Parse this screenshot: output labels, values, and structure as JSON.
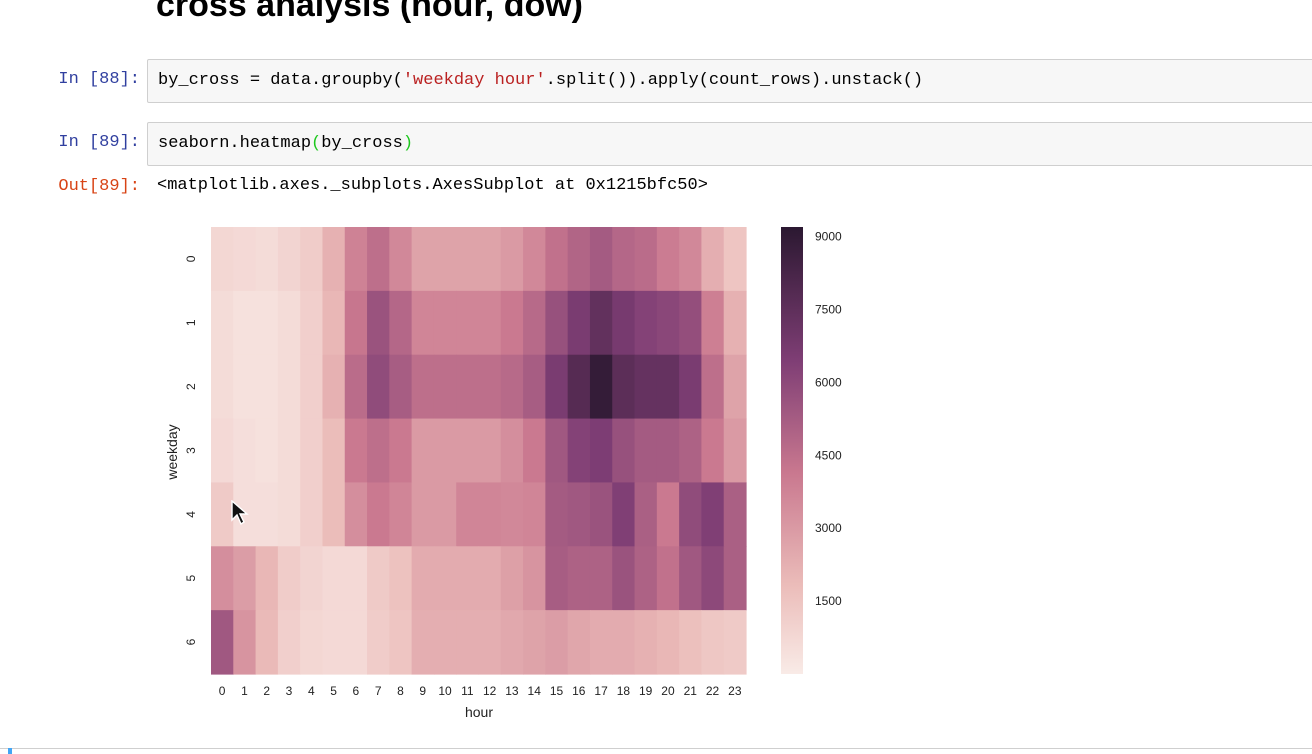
{
  "heading": "cross analysis (hour, dow)",
  "cells": {
    "c88": {
      "prompt": "In [88]:",
      "code_pre": "by_cross = data.groupby(",
      "code_str": "'weekday hour'",
      "code_post": ".split()).apply(count_rows).unstack()"
    },
    "c89": {
      "prompt": "In [89]:",
      "code_pre": "seaborn.heatmap",
      "code_open": "(",
      "code_arg": "by_cross",
      "code_close": ")"
    },
    "out89": {
      "prompt": "Out[89]:",
      "text": "<matplotlib.axes._subplots.AxesSubplot at 0x1215bfc50>"
    }
  },
  "chart_data": {
    "type": "heatmap",
    "xlabel": "hour",
    "ylabel": "weekday",
    "x": [
      "0",
      "1",
      "2",
      "3",
      "4",
      "5",
      "6",
      "7",
      "8",
      "9",
      "10",
      "11",
      "12",
      "13",
      "14",
      "15",
      "16",
      "17",
      "18",
      "19",
      "20",
      "21",
      "22",
      "23"
    ],
    "y": [
      "0",
      "1",
      "2",
      "3",
      "4",
      "5",
      "6"
    ],
    "values": [
      [
        800,
        700,
        600,
        900,
        1200,
        2200,
        3800,
        4500,
        3600,
        2700,
        2700,
        2700,
        2700,
        3000,
        3600,
        4400,
        4900,
        5300,
        4800,
        4600,
        4000,
        3600,
        2300,
        1500
      ],
      [
        600,
        400,
        400,
        600,
        1100,
        2000,
        4200,
        5600,
        4800,
        3700,
        3700,
        3700,
        3700,
        4100,
        4700,
        5700,
        6600,
        7400,
        6700,
        6300,
        6100,
        5800,
        3900,
        2200
      ],
      [
        600,
        400,
        400,
        600,
        1100,
        2200,
        4600,
        5900,
        5200,
        4500,
        4500,
        4500,
        4500,
        4700,
        5200,
        6600,
        7800,
        8900,
        7600,
        7300,
        7300,
        6600,
        4500,
        2700
      ],
      [
        700,
        500,
        400,
        600,
        1100,
        1800,
        4100,
        4500,
        4100,
        3000,
        3000,
        3000,
        3000,
        3400,
        4100,
        5400,
        6300,
        6500,
        5700,
        5300,
        5300,
        5000,
        4100,
        3000
      ],
      [
        1300,
        500,
        500,
        600,
        1100,
        1800,
        3400,
        4100,
        3700,
        3000,
        3000,
        3700,
        3700,
        3600,
        3700,
        5300,
        5400,
        5600,
        6400,
        5100,
        4100,
        5900,
        6400,
        5100
      ],
      [
        3400,
        2900,
        2000,
        1200,
        900,
        700,
        700,
        1300,
        1600,
        2400,
        2400,
        2400,
        2400,
        2800,
        3200,
        5200,
        5000,
        5000,
        5600,
        5000,
        4400,
        5400,
        6000,
        5100
      ],
      [
        5400,
        3200,
        1900,
        1100,
        800,
        700,
        700,
        1200,
        1500,
        2300,
        2300,
        2300,
        2300,
        2500,
        2700,
        2900,
        2600,
        2400,
        2400,
        2200,
        2000,
        1700,
        1400,
        1300
      ]
    ],
    "colorbar": {
      "min": 0,
      "max": 9200,
      "ticks": [
        "1500",
        "3000",
        "4500",
        "6000",
        "7500",
        "9000"
      ]
    }
  }
}
